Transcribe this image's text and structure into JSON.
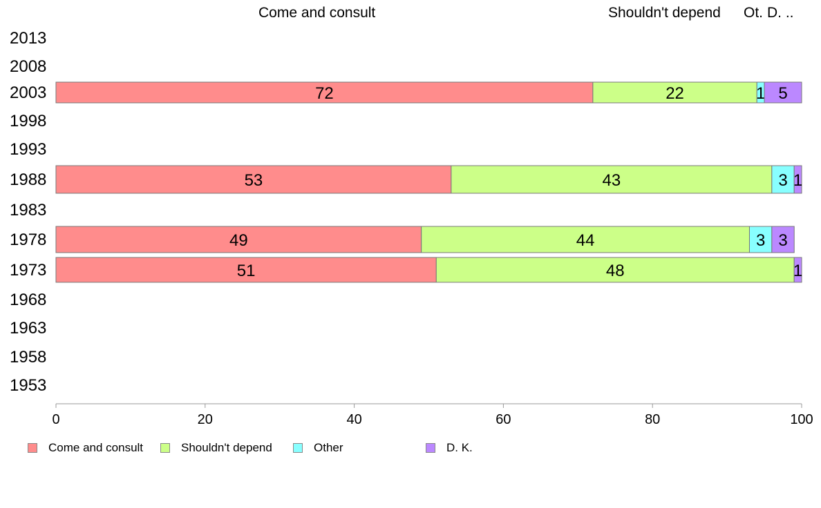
{
  "chart_data": {
    "type": "bar",
    "orientation": "horizontal",
    "stacked": true,
    "categories": [
      "1953",
      "1958",
      "1963",
      "1968",
      "1973",
      "1978",
      "1983",
      "1988",
      "1993",
      "1998",
      "2003",
      "2008",
      "2013"
    ],
    "series": [
      {
        "name": "Come and consult",
        "color": "#ff8c8c",
        "values": [
          null,
          null,
          null,
          null,
          51,
          49,
          null,
          53,
          null,
          null,
          72,
          null,
          null
        ]
      },
      {
        "name": "Shouldn't depend",
        "color": "#ccff88",
        "values": [
          null,
          null,
          null,
          null,
          48,
          44,
          null,
          43,
          null,
          null,
          22,
          null,
          null
        ]
      },
      {
        "name": "Other",
        "color": "#88ffff",
        "values": [
          null,
          null,
          null,
          null,
          0,
          3,
          null,
          3,
          null,
          null,
          1,
          null,
          null
        ]
      },
      {
        "name": "D. K.",
        "color": "#bb88ff",
        "values": [
          null,
          null,
          null,
          null,
          1,
          3,
          null,
          1,
          null,
          null,
          5,
          null,
          null
        ]
      }
    ],
    "xlim": [
      0,
      100
    ],
    "xticks": [
      0,
      20,
      40,
      60,
      80,
      100
    ],
    "header_labels": [
      "Come and consult",
      "Shouldn't depend",
      "Ot.",
      "D. .."
    ],
    "legend_position": "bottom-left",
    "grid": false
  }
}
